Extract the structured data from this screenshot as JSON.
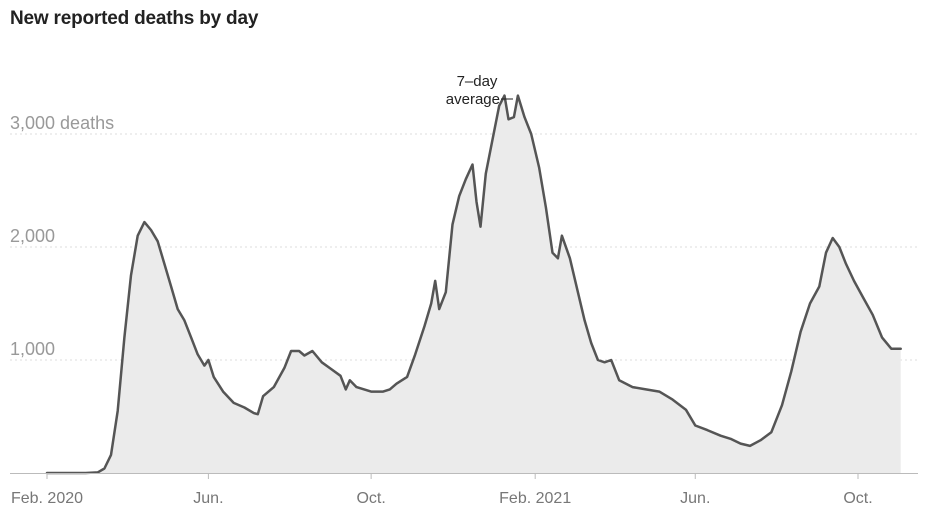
{
  "title": "New reported deaths by day",
  "chart_data": {
    "type": "area",
    "title": "New reported deaths by day",
    "xlabel": "",
    "ylabel": "",
    "series": [
      {
        "values": [
          [
            "2020-02-01",
            0
          ],
          [
            "2020-02-20",
            0
          ],
          [
            "2020-03-01",
            0
          ],
          [
            "2020-03-10",
            5
          ],
          [
            "2020-03-15",
            40
          ],
          [
            "2020-03-20",
            160
          ],
          [
            "2020-03-25",
            550
          ],
          [
            "2020-03-30",
            1200
          ],
          [
            "2020-04-04",
            1750
          ],
          [
            "2020-04-09",
            2100
          ],
          [
            "2020-04-14",
            2220
          ],
          [
            "2020-04-19",
            2150
          ],
          [
            "2020-04-24",
            2050
          ],
          [
            "2020-04-29",
            1850
          ],
          [
            "2020-05-04",
            1650
          ],
          [
            "2020-05-09",
            1450
          ],
          [
            "2020-05-14",
            1350
          ],
          [
            "2020-05-19",
            1200
          ],
          [
            "2020-05-24",
            1050
          ],
          [
            "2020-05-29",
            950
          ],
          [
            "2020-06-01",
            1000
          ],
          [
            "2020-06-05",
            850
          ],
          [
            "2020-06-12",
            720
          ],
          [
            "2020-06-20",
            620
          ],
          [
            "2020-06-28",
            580
          ],
          [
            "2020-07-05",
            530
          ],
          [
            "2020-07-08",
            520
          ],
          [
            "2020-07-12",
            680
          ],
          [
            "2020-07-20",
            760
          ],
          [
            "2020-07-28",
            930
          ],
          [
            "2020-08-02",
            1080
          ],
          [
            "2020-08-08",
            1080
          ],
          [
            "2020-08-12",
            1040
          ],
          [
            "2020-08-18",
            1080
          ],
          [
            "2020-08-25",
            980
          ],
          [
            "2020-09-01",
            920
          ],
          [
            "2020-09-08",
            860
          ],
          [
            "2020-09-12",
            740
          ],
          [
            "2020-09-15",
            820
          ],
          [
            "2020-09-20",
            760
          ],
          [
            "2020-10-01",
            720
          ],
          [
            "2020-10-10",
            720
          ],
          [
            "2020-10-15",
            740
          ],
          [
            "2020-10-20",
            790
          ],
          [
            "2020-10-28",
            850
          ],
          [
            "2020-11-03",
            1050
          ],
          [
            "2020-11-10",
            1300
          ],
          [
            "2020-11-15",
            1500
          ],
          [
            "2020-11-18",
            1700
          ],
          [
            "2020-11-21",
            1450
          ],
          [
            "2020-11-26",
            1600
          ],
          [
            "2020-12-01",
            2200
          ],
          [
            "2020-12-06",
            2450
          ],
          [
            "2020-12-11",
            2600
          ],
          [
            "2020-12-16",
            2730
          ],
          [
            "2020-12-19",
            2400
          ],
          [
            "2020-12-22",
            2180
          ],
          [
            "2020-12-26",
            2650
          ],
          [
            "2020-12-31",
            2950
          ],
          [
            "2021-01-05",
            3250
          ],
          [
            "2021-01-09",
            3340
          ],
          [
            "2021-01-12",
            3130
          ],
          [
            "2021-01-16",
            3150
          ],
          [
            "2021-01-19",
            3340
          ],
          [
            "2021-01-24",
            3150
          ],
          [
            "2021-01-29",
            3000
          ],
          [
            "2021-02-04",
            2700
          ],
          [
            "2021-02-09",
            2350
          ],
          [
            "2021-02-14",
            1950
          ],
          [
            "2021-02-18",
            1900
          ],
          [
            "2021-02-21",
            2100
          ],
          [
            "2021-02-27",
            1900
          ],
          [
            "2021-03-05",
            1600
          ],
          [
            "2021-03-10",
            1350
          ],
          [
            "2021-03-15",
            1150
          ],
          [
            "2021-03-20",
            1000
          ],
          [
            "2021-03-25",
            980
          ],
          [
            "2021-03-30",
            1000
          ],
          [
            "2021-04-05",
            820
          ],
          [
            "2021-04-15",
            760
          ],
          [
            "2021-04-25",
            740
          ],
          [
            "2021-05-05",
            720
          ],
          [
            "2021-05-15",
            650
          ],
          [
            "2021-05-25",
            560
          ],
          [
            "2021-06-01",
            420
          ],
          [
            "2021-06-10",
            380
          ],
          [
            "2021-06-20",
            330
          ],
          [
            "2021-06-28",
            300
          ],
          [
            "2021-07-05",
            260
          ],
          [
            "2021-07-12",
            240
          ],
          [
            "2021-07-20",
            290
          ],
          [
            "2021-07-28",
            360
          ],
          [
            "2021-08-05",
            600
          ],
          [
            "2021-08-12",
            900
          ],
          [
            "2021-08-19",
            1250
          ],
          [
            "2021-08-26",
            1500
          ],
          [
            "2021-09-02",
            1650
          ],
          [
            "2021-09-07",
            1950
          ],
          [
            "2021-09-12",
            2080
          ],
          [
            "2021-09-17",
            2000
          ],
          [
            "2021-09-22",
            1850
          ],
          [
            "2021-09-28",
            1700
          ],
          [
            "2021-10-05",
            1550
          ],
          [
            "2021-10-12",
            1400
          ],
          [
            "2021-10-19",
            1200
          ],
          [
            "2021-10-26",
            1100
          ],
          [
            "2021-11-02",
            1100
          ]
        ]
      }
    ],
    "ylim": [
      0,
      3400
    ],
    "y_ticks": [
      {
        "value": 1000,
        "label": "1,000"
      },
      {
        "value": 2000,
        "label": "2,000"
      },
      {
        "value": 3000,
        "label": "3,000 deaths"
      }
    ],
    "x_ticks": [
      {
        "date": "2020-02-01",
        "label": "Feb. 2020"
      },
      {
        "date": "2020-06-01",
        "label": "Jun."
      },
      {
        "date": "2020-10-01",
        "label": "Oct."
      },
      {
        "date": "2021-02-01",
        "label": "Feb. 2021"
      },
      {
        "date": "2021-06-01",
        "label": "Jun."
      },
      {
        "date": "2021-10-01",
        "label": "Oct."
      }
    ],
    "annotation": {
      "lines": [
        "7–day",
        "average"
      ]
    },
    "grid": true,
    "colors": {
      "line": "#555555",
      "area": "#ebebeb",
      "grid": "#dddddd",
      "axis": "#bbbbbb"
    }
  }
}
